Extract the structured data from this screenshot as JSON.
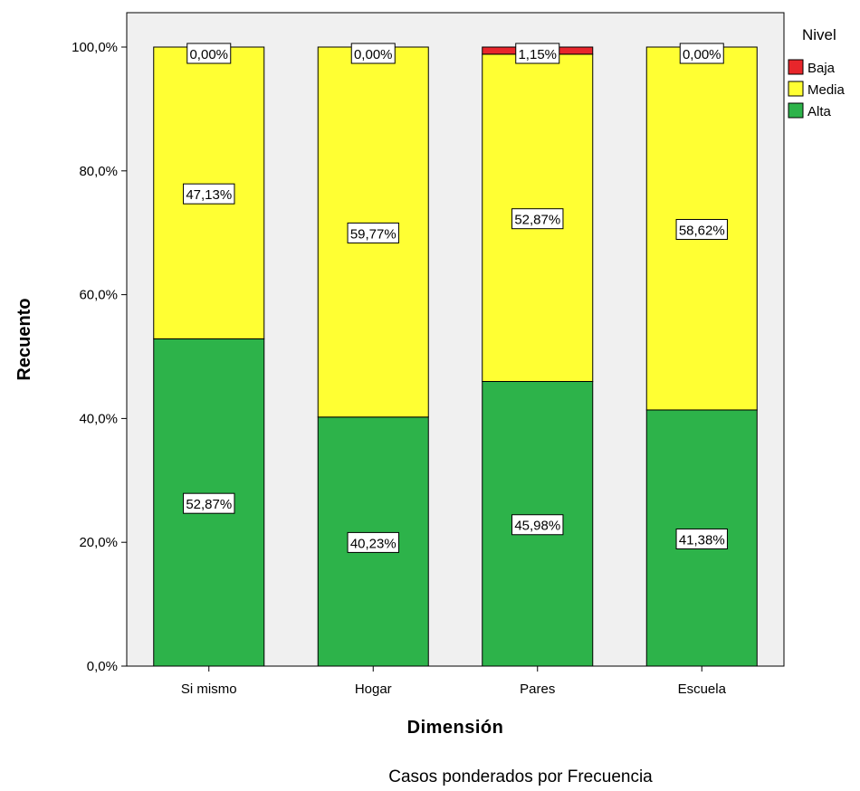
{
  "chart_data": {
    "type": "bar",
    "stacked": true,
    "percent": true,
    "title": "",
    "xlabel": "Dimensión",
    "ylabel": "Recuento",
    "footnote": "Casos ponderados por Frecuencia",
    "categories": [
      "Si mismo",
      "Hogar",
      "Pares",
      "Escuela"
    ],
    "series": [
      {
        "name": "Alta",
        "color": "#2db34a",
        "values": [
          52.87,
          40.23,
          45.98,
          41.38
        ],
        "labels": [
          "52,87%",
          "40,23%",
          "45,98%",
          "41,38%"
        ]
      },
      {
        "name": "Media",
        "color": "#ffff33",
        "values": [
          47.13,
          59.77,
          52.87,
          58.62
        ],
        "labels": [
          "47,13%",
          "59,77%",
          "52,87%",
          "58,62%"
        ]
      },
      {
        "name": "Baja",
        "color": "#e8262b",
        "values": [
          0.0,
          0.0,
          1.15,
          0.0
        ],
        "labels": [
          "0,00%",
          "0,00%",
          "1,15%",
          "0,00%"
        ]
      }
    ],
    "ylim": [
      0,
      100
    ],
    "yticks": [
      {
        "value": 0,
        "label": "0,0%"
      },
      {
        "value": 20,
        "label": "20,0%"
      },
      {
        "value": 40,
        "label": "40,0%"
      },
      {
        "value": 60,
        "label": "60,0%"
      },
      {
        "value": 80,
        "label": "80,0%"
      },
      {
        "value": 100,
        "label": "100,0%"
      }
    ],
    "legend": {
      "title": "Nivel",
      "position": "right",
      "items": [
        "Baja",
        "Media",
        "Alta"
      ]
    },
    "plot_background": "#f0f0f0",
    "grid": false
  }
}
